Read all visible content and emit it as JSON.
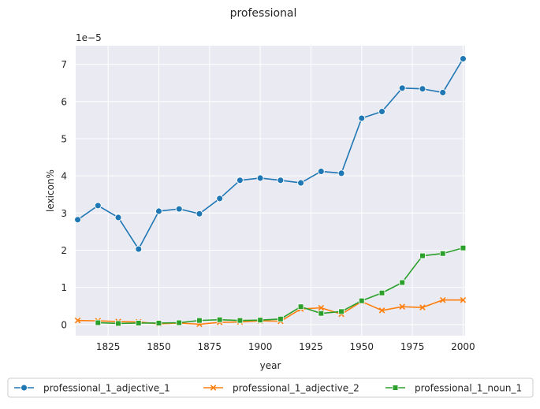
{
  "chart_data": {
    "type": "line",
    "title": "professional",
    "xlabel": "year",
    "ylabel": "lexicon%",
    "y_offset_label": "1e−5",
    "xlim": [
      1809,
      2001
    ],
    "ylim": [
      -0.3,
      7.5
    ],
    "x_ticks": [
      1825,
      1850,
      1875,
      1900,
      1925,
      1950,
      1975,
      2000
    ],
    "y_ticks": [
      0,
      1,
      2,
      3,
      4,
      5,
      6,
      7
    ],
    "grid": true,
    "legend_position": "bottom",
    "x": [
      1810,
      1820,
      1830,
      1840,
      1850,
      1860,
      1870,
      1880,
      1890,
      1900,
      1910,
      1920,
      1930,
      1940,
      1950,
      1960,
      1970,
      1980,
      1990,
      2000
    ],
    "series": [
      {
        "name": "professional_1_adjective_1",
        "color": "#1f77b4",
        "marker": "circle",
        "values": [
          2.82,
          3.2,
          2.88,
          2.03,
          3.05,
          3.11,
          2.98,
          3.39,
          3.88,
          3.94,
          3.88,
          3.81,
          4.12,
          4.07,
          5.55,
          5.73,
          6.36,
          6.34,
          6.24,
          7.15
        ]
      },
      {
        "name": "professional_1_adjective_2",
        "color": "#ff7f0e",
        "marker": "x",
        "values": [
          0.11,
          0.1,
          0.08,
          0.07,
          0.02,
          0.04,
          0.01,
          0.06,
          0.07,
          0.1,
          0.09,
          0.42,
          0.45,
          0.28,
          0.62,
          0.38,
          0.48,
          0.46,
          0.66,
          0.66
        ]
      },
      {
        "name": "professional_1_noun_1",
        "color": "#2ca02c",
        "marker": "square",
        "values": [
          null,
          0.05,
          0.03,
          0.04,
          0.04,
          0.05,
          0.11,
          0.13,
          0.11,
          0.12,
          0.15,
          0.48,
          0.3,
          0.35,
          0.64,
          0.85,
          1.13,
          1.85,
          1.91,
          2.06
        ]
      }
    ]
  }
}
